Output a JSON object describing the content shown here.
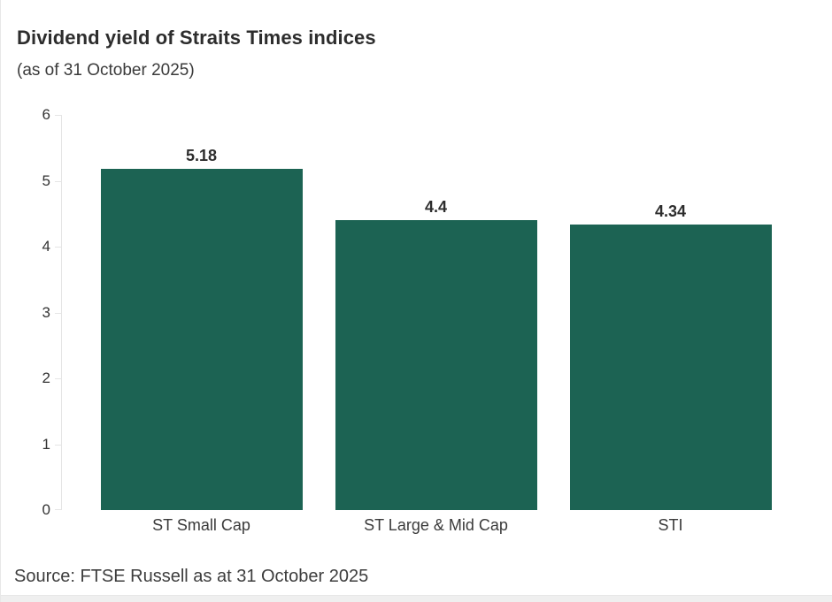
{
  "header": {
    "title": "Dividend yield of Straits Times indices",
    "subtitle": "(as of 31 October 2025)"
  },
  "footer": {
    "source": "Source: FTSE Russell as at 31 October 2025"
  },
  "colors": {
    "bar": "#1c6353",
    "axis_line": "#e5e5e5",
    "title_text": "#2d2d2d",
    "body_text": "#3b3b3b"
  },
  "chart_data": {
    "type": "bar",
    "categories": [
      "ST Small Cap",
      "ST Large & Mid Cap",
      "STI"
    ],
    "values": [
      5.18,
      4.4,
      4.34
    ],
    "value_labels": [
      "5.18",
      "4.4",
      "4.34"
    ],
    "title": "Dividend yield of Straits Times indices",
    "subtitle": "(as of 31 October 2025)",
    "xlabel": "",
    "ylabel": "",
    "ylim": [
      0,
      6
    ],
    "yticks": [
      0,
      1,
      2,
      3,
      4,
      5,
      6
    ],
    "grid": false,
    "legend": false,
    "bar_color": "#1c6353",
    "source": "Source: FTSE Russell as at 31 October 2025"
  }
}
